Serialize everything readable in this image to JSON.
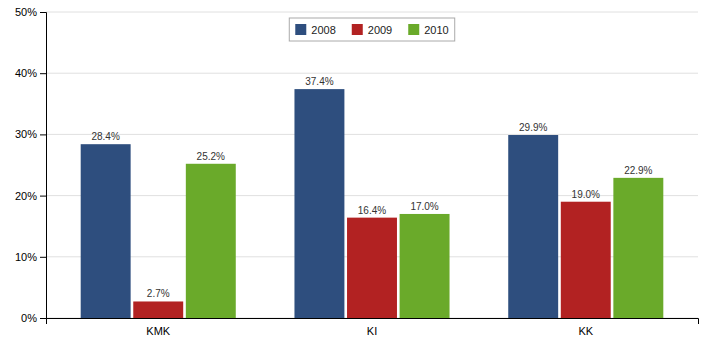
{
  "chart_data": {
    "type": "bar",
    "categories": [
      "KMK",
      "KI",
      "KK"
    ],
    "series": [
      {
        "name": "2008",
        "color": "#2e4e7e",
        "values": [
          28.4,
          37.4,
          29.9
        ],
        "value_labels": [
          "28.4%",
          "37.4%",
          "29.9%"
        ]
      },
      {
        "name": "2009",
        "color": "#b22222",
        "values": [
          2.7,
          16.4,
          19.0
        ],
        "value_labels": [
          "2.7%",
          "16.4%",
          "19.0%"
        ]
      },
      {
        "name": "2010",
        "color": "#6aaa2a",
        "values": [
          25.2,
          17.0,
          22.9
        ],
        "value_labels": [
          "25.2%",
          "17.0%",
          "22.9%"
        ]
      }
    ],
    "ylim": [
      0,
      50
    ],
    "yticks": [
      {
        "value": 0,
        "label": "0%"
      },
      {
        "value": 10,
        "label": "10%"
      },
      {
        "value": 20,
        "label": "20%"
      },
      {
        "value": 30,
        "label": "30%"
      },
      {
        "value": 40,
        "label": "40%"
      },
      {
        "value": 50,
        "label": "50%"
      }
    ],
    "grid": true,
    "legend": "top",
    "data_labels": true
  }
}
